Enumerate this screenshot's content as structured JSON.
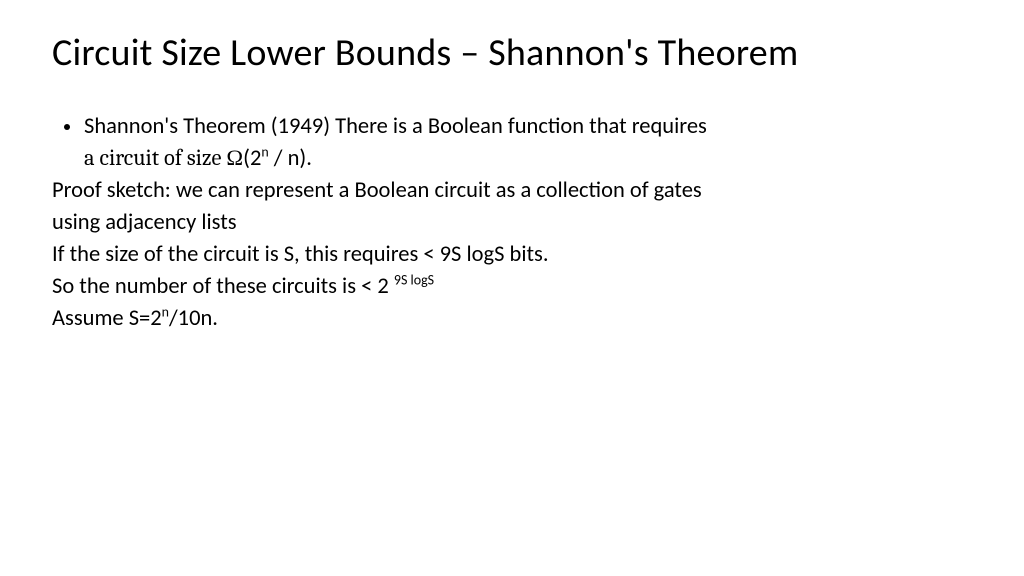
{
  "colors": {
    "background": "#ffffff",
    "text": "#000000"
  },
  "title": {
    "text": "Circuit Size Lower Bounds – Shannon's Theorem",
    "fontsize": 38,
    "weight": 400
  },
  "body": {
    "fontsize": 22.5,
    "line_height": 1.33,
    "bullet": {
      "line1": "Shannon's Theorem (1949) There is a Boolean function that requires",
      "line2_prefix": "a circuit of size ",
      "omega": "Ω",
      "line2_open": "(2",
      "line2_sup": "n",
      "line2_rest": " / n)."
    },
    "proof1": "Proof sketch: we can represent a Boolean circuit as a collection of gates",
    "proof2": "using adjacency lists",
    "proof3": "If the size of the circuit is S, this requires < 9S logS bits.",
    "proof4_prefix": "So the number of these circuits is < 2 ",
    "proof4_sup": "9S logS",
    "proof5_prefix": "Assume S=2",
    "proof5_sup": "n",
    "proof5_rest": "/10n."
  }
}
